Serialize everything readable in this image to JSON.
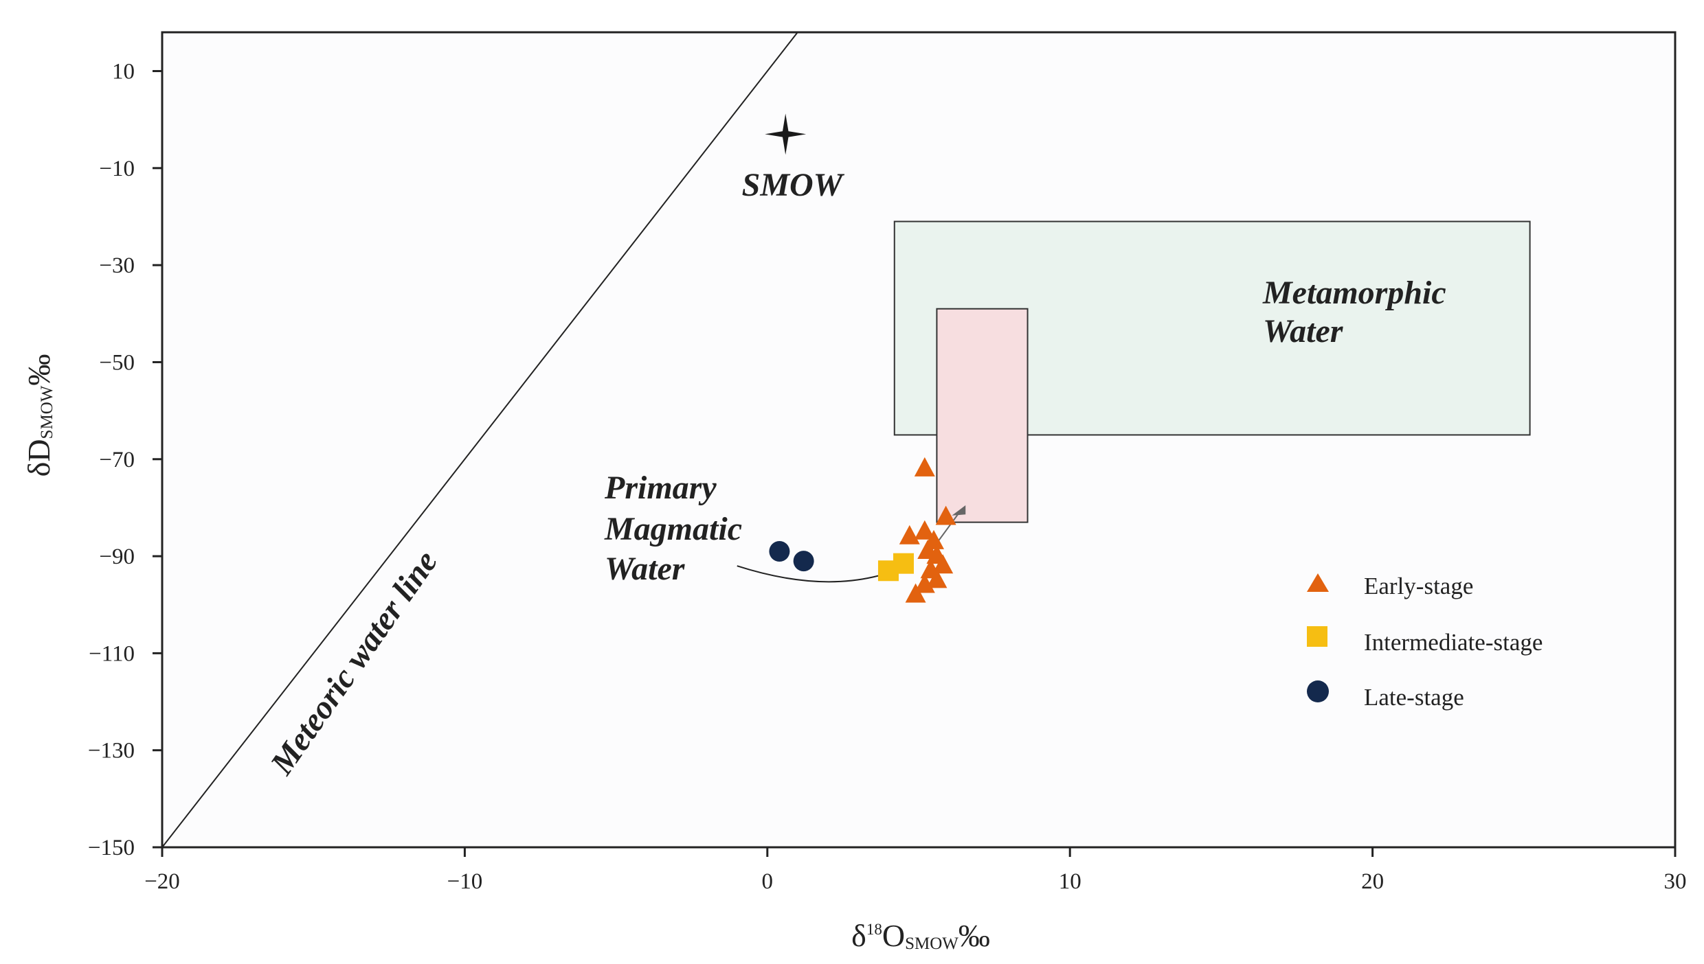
{
  "chart_data": {
    "type": "scatter",
    "xlabel": {
      "base": "δ",
      "sup": "18",
      "main": "O",
      "sub": "SMOW",
      "unit": "‰"
    },
    "ylabel": {
      "base": "δD",
      "sub": "SMOW",
      "unit": "‰"
    },
    "xlim": [
      -20,
      30
    ],
    "ylim": [
      -150,
      18
    ],
    "x_ticks": [
      -20,
      -10,
      0,
      10,
      20,
      30
    ],
    "x_tick_labels": [
      "−20",
      "−10",
      "0",
      "10",
      "20",
      "30"
    ],
    "y_ticks": [
      10,
      -10,
      -30,
      -50,
      -70,
      -90,
      -110,
      -130,
      -150
    ],
    "y_tick_labels": [
      "10",
      "−10",
      "−30",
      "−50",
      "−70",
      "−90",
      "−110",
      "−130",
      "−150"
    ],
    "grid": false,
    "legend_position": "right",
    "series": [
      {
        "name": "Early-stage",
        "marker": "triangle",
        "color": "#E2620F",
        "points": [
          [
            5.2,
            -72
          ],
          [
            5.9,
            -82
          ],
          [
            4.7,
            -86
          ],
          [
            5.2,
            -85
          ],
          [
            5.5,
            -87
          ],
          [
            5.3,
            -89
          ],
          [
            5.6,
            -90
          ],
          [
            5.8,
            -92
          ],
          [
            5.4,
            -93
          ],
          [
            5.6,
            -95
          ],
          [
            5.2,
            -96
          ],
          [
            4.9,
            -98
          ]
        ]
      },
      {
        "name": "Intermediate-stage",
        "marker": "square",
        "color": "#F6BE12",
        "points": [
          [
            4.0,
            -93
          ],
          [
            4.5,
            -91.5
          ]
        ]
      },
      {
        "name": "Late-stage",
        "marker": "circle",
        "color": "#14294D",
        "points": [
          [
            0.4,
            -89
          ],
          [
            1.2,
            -91
          ]
        ]
      }
    ],
    "reference": {
      "meteoric_water_line": {
        "label": "Meteoric water line",
        "slope": 8,
        "intercept": 10
      },
      "smow": {
        "label": "SMOW",
        "x": 0.6,
        "y": -3
      },
      "metamorphic_water": {
        "label_lines": [
          "Metamorphic",
          "Water"
        ],
        "x": [
          4.2,
          25.2
        ],
        "y": [
          -65,
          -21
        ],
        "fill": "#EAF3EE"
      },
      "primary_magmatic_water": {
        "label_lines": [
          "Primary",
          "Magmatic",
          "Water"
        ],
        "x": [
          5.6,
          8.6
        ],
        "y": [
          -83,
          -39
        ],
        "fill": "#F7DEE0"
      }
    }
  }
}
